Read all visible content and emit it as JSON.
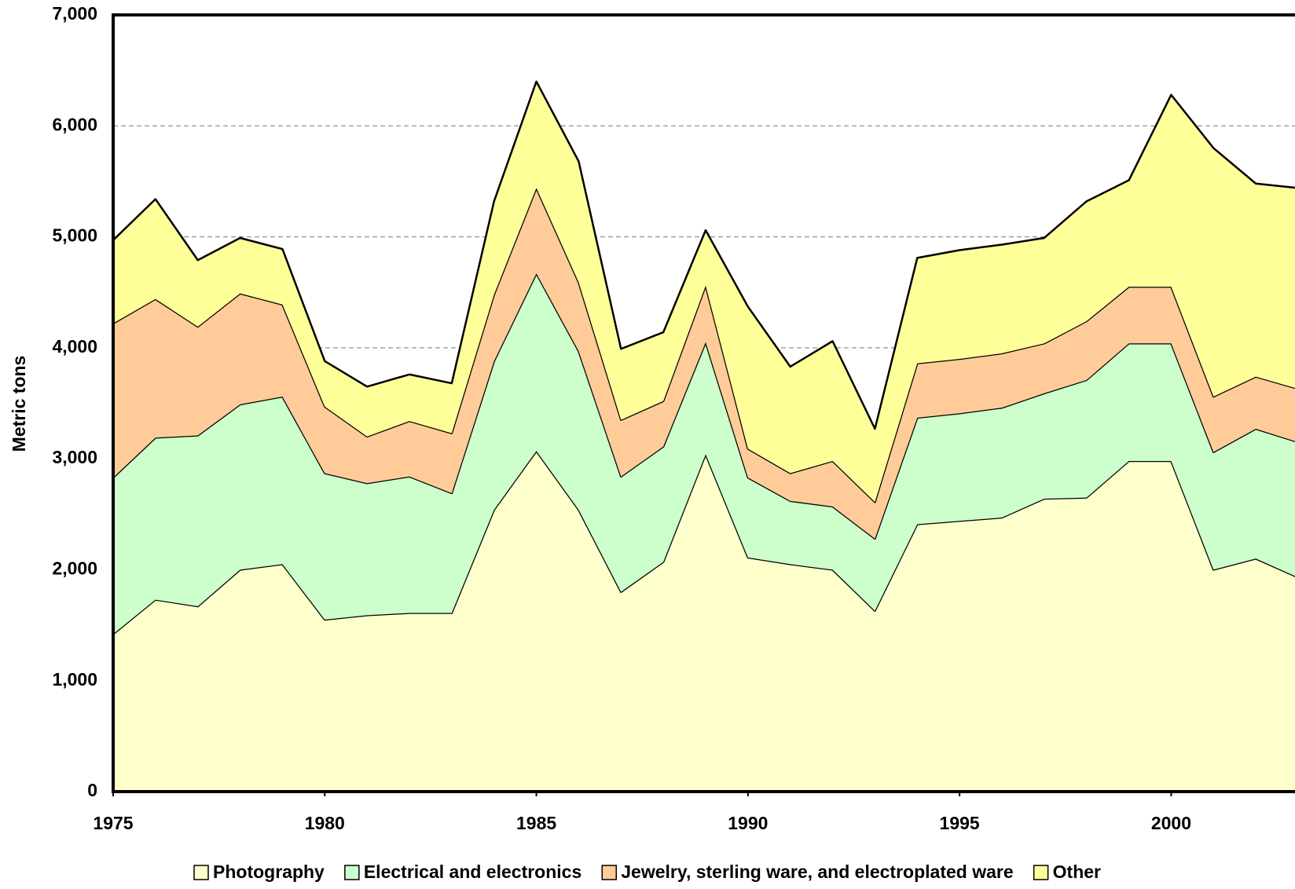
{
  "chart_data": {
    "type": "stacked-area",
    "y_label": "Metric tons",
    "x": [
      1975,
      1976,
      1977,
      1978,
      1979,
      1980,
      1981,
      1982,
      1983,
      1984,
      1985,
      1986,
      1987,
      1988,
      1989,
      1990,
      1991,
      1992,
      1993,
      1994,
      1995,
      1996,
      1997,
      1998,
      1999,
      2000,
      2001,
      2002,
      2003
    ],
    "series": [
      {
        "name": "Photography",
        "color": "#ffffcc",
        "values": [
          1420,
          1730,
          1670,
          2000,
          2050,
          1550,
          1590,
          1610,
          1610,
          2540,
          3070,
          2540,
          1800,
          2070,
          3040,
          2110,
          2050,
          2000,
          1630,
          2410,
          2440,
          2470,
          2640,
          2650,
          2980,
          2980,
          2000,
          2100,
          1930
        ]
      },
      {
        "name": "Electrical and electronics",
        "color": "#ccffcc",
        "values": [
          1410,
          1460,
          1540,
          1490,
          1510,
          1320,
          1190,
          1230,
          1080,
          1340,
          1600,
          1430,
          1040,
          1040,
          1010,
          720,
          570,
          570,
          650,
          960,
          970,
          990,
          950,
          1060,
          1060,
          1060,
          1060,
          1170,
          1220
        ]
      },
      {
        "name": "Jewelry, sterling ware, and electroplated ware",
        "color": "#ffcc99",
        "values": [
          1390,
          1250,
          980,
          1000,
          830,
          600,
          420,
          500,
          540,
          600,
          770,
          620,
          510,
          410,
          510,
          260,
          250,
          410,
          330,
          490,
          490,
          490,
          450,
          530,
          510,
          510,
          500,
          470,
          480
        ]
      },
      {
        "name": "Other",
        "color": "#ffff99",
        "values": [
          750,
          900,
          600,
          500,
          500,
          410,
          450,
          420,
          450,
          840,
          960,
          1090,
          640,
          620,
          500,
          1280,
          960,
          1080,
          660,
          950,
          980,
          980,
          950,
          1080,
          960,
          1730,
          2240,
          1740,
          1810
        ]
      }
    ],
    "xlim": [
      1975,
      2003
    ],
    "xticks": [
      1975,
      1980,
      1985,
      1990,
      1995,
      2000
    ],
    "ylim": [
      0,
      7000
    ],
    "yticks": [
      0,
      {
        "value": 1000,
        "label": "1,000"
      },
      {
        "value": 2000,
        "label": "2,000"
      },
      {
        "value": 3000,
        "label": "3,000"
      },
      {
        "value": 4000,
        "label": "4,000"
      },
      {
        "value": 5000,
        "label": "5,000"
      },
      {
        "value": 6000,
        "label": "6,000"
      },
      {
        "value": 7000,
        "label": "7,000"
      }
    ],
    "grid": true,
    "legend": "bottom"
  }
}
